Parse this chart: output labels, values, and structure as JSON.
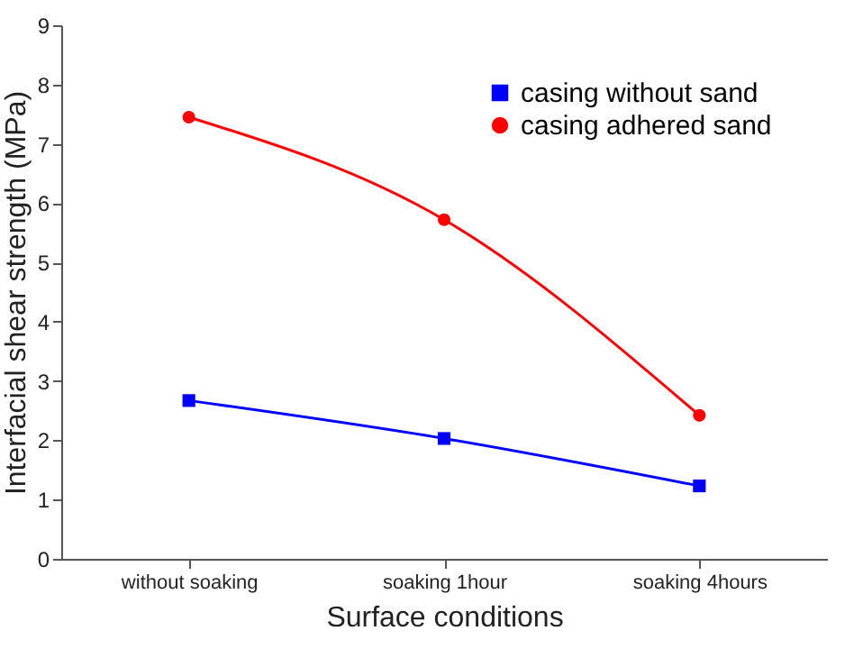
{
  "chart_data": {
    "type": "line",
    "xlabel": "Surface conditions",
    "ylabel": "Interfacial shear strength (MPa)",
    "categories": [
      "without soaking",
      "soaking 1hour",
      "soaking 4hours"
    ],
    "series": [
      {
        "name": "casing without sand",
        "color": "#0000ff",
        "marker": "square",
        "values": [
          2.67,
          2.03,
          1.23
        ]
      },
      {
        "name": "casing adhered sand",
        "color": "#ff0000",
        "marker": "circle",
        "values": [
          7.45,
          5.72,
          2.42
        ]
      }
    ],
    "ylim": [
      0,
      9
    ],
    "yticks": [
      0,
      1,
      2,
      3,
      4,
      5,
      6,
      7,
      8,
      9
    ],
    "grid": false,
    "legend": "top right"
  }
}
